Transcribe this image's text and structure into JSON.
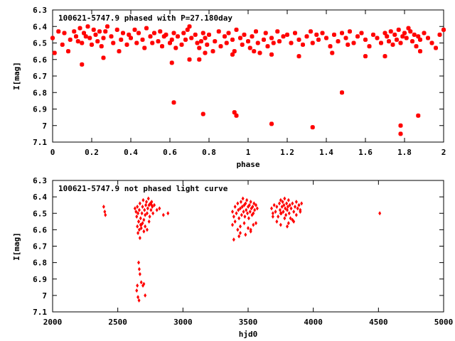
{
  "chart_data": [
    {
      "type": "scatter",
      "title": "100621-5747.9 phased with P=27.180day",
      "xlabel": "phase",
      "ylabel": "I[mag]",
      "xlim": [
        0,
        2
      ],
      "ylim": [
        6.3,
        7.1
      ],
      "y_inverted": true,
      "grid": false,
      "color": "#ff0000",
      "marker": "cross-square",
      "x_ticks": [
        "0",
        "0.2",
        "0.4",
        "0.6",
        "0.8",
        "1",
        "1.2",
        "1.4",
        "1.6",
        "1.8",
        "2"
      ],
      "y_ticks": [
        "6.3",
        "6.4",
        "6.5",
        "6.6",
        "6.7",
        "6.8",
        "6.9",
        "7",
        "7.1"
      ],
      "series": [
        {
          "x": [
            0.0,
            0.01,
            0.03,
            0.05,
            0.06,
            0.08,
            0.09,
            0.11,
            0.12,
            0.13,
            0.14,
            0.15,
            0.16,
            0.17,
            0.18,
            0.19,
            0.2,
            0.21,
            0.22,
            0.23,
            0.24,
            0.25,
            0.26,
            0.27,
            0.28,
            0.3,
            0.31,
            0.33,
            0.34,
            0.35,
            0.36,
            0.38,
            0.39,
            0.4,
            0.42,
            0.43,
            0.44,
            0.46,
            0.47,
            0.48,
            0.5,
            0.51,
            0.52,
            0.54,
            0.55,
            0.56,
            0.57,
            0.58,
            0.6,
            0.61,
            0.62,
            0.63,
            0.64,
            0.66,
            0.67,
            0.68,
            0.69,
            0.7,
            0.71,
            0.73,
            0.74,
            0.75,
            0.76,
            0.77,
            0.78,
            0.79,
            0.8,
            0.82,
            0.83,
            0.85,
            0.86,
            0.88,
            0.89,
            0.9,
            0.92,
            0.93,
            0.94,
            0.96,
            0.97,
            0.98,
            1.0,
            1.01,
            1.02,
            1.04,
            1.05,
            1.06,
            1.08,
            1.09,
            1.1,
            1.12,
            1.13,
            1.15,
            1.16,
            1.18,
            1.2,
            1.22,
            1.24,
            1.26,
            1.28,
            1.3,
            1.32,
            1.33,
            1.35,
            1.36,
            1.38,
            1.4,
            1.42,
            1.44,
            1.46,
            1.48,
            1.5,
            1.51,
            1.52,
            1.54,
            1.56,
            1.58,
            1.6,
            1.62,
            1.64,
            1.66,
            1.68,
            1.7,
            1.71,
            1.72,
            1.73,
            1.74,
            1.75,
            1.76,
            1.77,
            1.78,
            1.79,
            1.8,
            1.81,
            1.82,
            1.83,
            1.84,
            1.85,
            1.86,
            1.87,
            1.88,
            1.9,
            1.92,
            1.94,
            1.96,
            1.98,
            2.0,
            0.15,
            0.26,
            0.61,
            0.7,
            0.78,
            0.75,
            0.92,
            1.03,
            1.12,
            1.26,
            1.43,
            1.6,
            1.7,
            1.88,
            0.62,
            0.77,
            0.93,
            0.94,
            1.12,
            1.33,
            1.48,
            1.78,
            1.87,
            1.78
          ],
          "y": [
            6.47,
            6.56,
            6.43,
            6.51,
            6.44,
            6.55,
            6.48,
            6.43,
            6.46,
            6.49,
            6.41,
            6.5,
            6.44,
            6.46,
            6.4,
            6.47,
            6.51,
            6.42,
            6.45,
            6.49,
            6.43,
            6.52,
            6.47,
            6.43,
            6.4,
            6.46,
            6.5,
            6.42,
            6.55,
            6.48,
            6.44,
            6.51,
            6.45,
            6.47,
            6.42,
            6.5,
            6.44,
            6.48,
            6.53,
            6.41,
            6.46,
            6.5,
            6.44,
            6.49,
            6.43,
            6.52,
            6.46,
            6.45,
            6.5,
            6.48,
            6.44,
            6.53,
            6.46,
            6.51,
            6.44,
            6.48,
            6.42,
            6.4,
            6.47,
            6.45,
            6.5,
            6.53,
            6.49,
            6.44,
            6.47,
            6.51,
            6.45,
            6.55,
            6.49,
            6.43,
            6.52,
            6.46,
            6.5,
            6.44,
            6.48,
            6.55,
            6.42,
            6.47,
            6.51,
            6.45,
            6.49,
            6.53,
            6.46,
            6.43,
            6.5,
            6.56,
            6.48,
            6.44,
            6.52,
            6.47,
            6.5,
            6.43,
            6.49,
            6.46,
            6.45,
            6.5,
            6.44,
            6.48,
            6.51,
            6.46,
            6.43,
            6.5,
            6.45,
            6.48,
            6.44,
            6.47,
            6.52,
            6.45,
            6.49,
            6.44,
            6.47,
            6.51,
            6.43,
            6.5,
            6.46,
            6.44,
            6.48,
            6.52,
            6.45,
            6.47,
            6.5,
            6.44,
            6.46,
            6.49,
            6.43,
            6.51,
            6.45,
            6.48,
            6.42,
            6.5,
            6.46,
            6.44,
            6.47,
            6.41,
            6.43,
            6.49,
            6.45,
            6.52,
            6.46,
            6.48,
            6.44,
            6.47,
            6.5,
            6.53,
            6.45,
            6.42,
            6.63,
            6.59,
            6.62,
            6.6,
            6.56,
            6.6,
            6.57,
            6.55,
            6.57,
            6.58,
            6.56,
            6.58,
            6.58,
            6.55,
            6.86,
            6.93,
            6.92,
            6.94,
            6.99,
            7.01,
            6.8,
            7.0,
            6.94,
            7.05
          ]
        }
      ]
    },
    {
      "type": "scatter",
      "title": "100621-5747.9 not phased light curve",
      "xlabel": "hjd0",
      "ylabel": "I[mag]",
      "xlim": [
        2000,
        5000
      ],
      "ylim": [
        6.3,
        7.1
      ],
      "y_inverted": true,
      "grid": false,
      "color": "#ff0000",
      "marker": "diamond",
      "x_ticks": [
        "2000",
        "2500",
        "3000",
        "3500",
        "4000",
        "4500",
        "5000"
      ],
      "y_ticks": [
        "6.3",
        "6.4",
        "6.5",
        "6.6",
        "6.7",
        "6.8",
        "6.9",
        "7",
        "7.1"
      ],
      "series": [
        {
          "x": [
            2392,
            2400,
            2405,
            2632,
            2640,
            2645,
            2650,
            2655,
            2660,
            2665,
            2670,
            2675,
            2680,
            2685,
            2690,
            2695,
            2700,
            2705,
            2710,
            2715,
            2720,
            2725,
            2730,
            2735,
            2740,
            2745,
            2750,
            2755,
            2760,
            2765,
            2770,
            2780,
            2800,
            2820,
            2850,
            2885,
            2650,
            2655,
            2660,
            2665,
            2670,
            2675,
            2680,
            2690,
            2700,
            2710,
            2725,
            2740,
            2660,
            2665,
            2670,
            2680,
            2700,
            2650,
            2645,
            2655,
            2663,
            2693,
            2710,
            2760,
            3380,
            3390,
            3400,
            3410,
            3420,
            3425,
            3430,
            3440,
            3445,
            3450,
            3455,
            3460,
            3465,
            3470,
            3475,
            3480,
            3485,
            3490,
            3495,
            3500,
            3505,
            3510,
            3515,
            3520,
            3525,
            3530,
            3535,
            3540,
            3545,
            3550,
            3560,
            3570,
            3380,
            3400,
            3420,
            3440,
            3470,
            3500,
            3520,
            3540,
            3440,
            3480,
            3520,
            3560,
            3390,
            3430,
            3680,
            3690,
            3700,
            3710,
            3720,
            3730,
            3740,
            3745,
            3750,
            3755,
            3760,
            3765,
            3770,
            3775,
            3780,
            3785,
            3790,
            3795,
            3800,
            3805,
            3810,
            3815,
            3820,
            3825,
            3830,
            3840,
            3850,
            3860,
            3870,
            3880,
            3890,
            3900,
            3910,
            3690,
            3720,
            3750,
            3780,
            3810,
            3840,
            3870,
            3900,
            3750,
            3800,
            3850,
            4510
          ],
          "y": [
            6.46,
            6.49,
            6.51,
            6.47,
            6.49,
            6.52,
            6.46,
            6.5,
            6.55,
            6.48,
            6.44,
            6.53,
            6.57,
            6.5,
            6.46,
            6.42,
            6.54,
            6.48,
            6.51,
            6.45,
            6.43,
            6.5,
            6.47,
            6.41,
            6.45,
            6.52,
            6.44,
            6.48,
            6.43,
            6.46,
            6.5,
            6.45,
            6.48,
            6.47,
            6.51,
            6.5,
            6.58,
            6.62,
            6.55,
            6.6,
            6.65,
            6.57,
            6.59,
            6.56,
            6.61,
            6.58,
            6.6,
            6.55,
            6.8,
            6.84,
            6.87,
            6.92,
            6.93,
            6.94,
            6.97,
            7.01,
            7.03,
            6.94,
            7.0,
            6.45,
            6.49,
            6.52,
            6.46,
            6.5,
            6.44,
            6.48,
            6.53,
            6.47,
            6.43,
            6.51,
            6.46,
            6.41,
            6.49,
            6.45,
            6.52,
            6.44,
            6.48,
            6.42,
            6.5,
            6.46,
            6.53,
            6.45,
            6.49,
            6.43,
            6.47,
            6.51,
            6.46,
            6.5,
            6.44,
            6.48,
            6.45,
            6.47,
            6.57,
            6.55,
            6.6,
            6.58,
            6.56,
            6.59,
            6.61,
            6.57,
            6.62,
            6.63,
            6.6,
            6.56,
            6.66,
            6.64,
            6.47,
            6.5,
            6.45,
            6.49,
            6.46,
            6.52,
            6.44,
            6.48,
            6.42,
            6.5,
            6.46,
            6.43,
            6.49,
            6.45,
            6.41,
            6.47,
            6.51,
            6.44,
            6.48,
            6.46,
            6.42,
            6.5,
            6.45,
            6.53,
            6.47,
            6.44,
            6.49,
            6.46,
            6.43,
            6.47,
            6.45,
            6.48,
            6.44,
            6.52,
            6.55,
            6.5,
            6.53,
            6.56,
            6.54,
            6.51,
            6.49,
            6.57,
            6.58,
            6.55,
            6.5
          ]
        }
      ]
    }
  ]
}
